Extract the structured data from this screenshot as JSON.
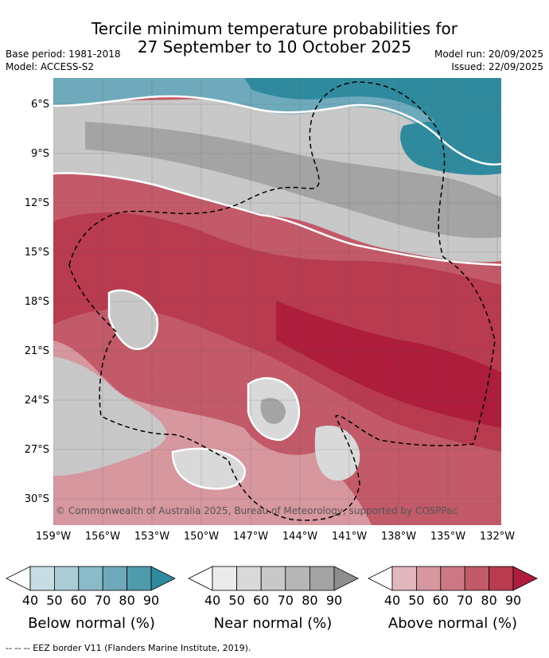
{
  "title": {
    "line1": "Tercile minimum temperature probabilities for",
    "line2": "27 September to 10 October 2025"
  },
  "meta": {
    "base_period": "Base period: 1981-2018",
    "model": "Model: ACCESS-S2",
    "model_run": "Model run: 20/09/2025",
    "issued": "Issued: 22/09/2025"
  },
  "map": {
    "lat_labels": [
      "6°S",
      "9°S",
      "12°S",
      "15°S",
      "18°S",
      "21°S",
      "24°S",
      "27°S",
      "30°S"
    ],
    "lon_labels": [
      "159°W",
      "156°W",
      "153°W",
      "150°W",
      "147°W",
      "144°W",
      "141°W",
      "138°W",
      "135°W",
      "132°W"
    ],
    "copyright": "© Commonwealth of Australia 2025, Bureau of Meteorology, supported by COSPPac"
  },
  "legend": {
    "ticks": [
      "40",
      "50",
      "60",
      "70",
      "80",
      "90"
    ],
    "below": {
      "title": "Below normal (%)",
      "colors": [
        "#c8dde3",
        "#a9ccd5",
        "#8bbac8",
        "#6eaabb",
        "#4f9aac",
        "#2f8a9e"
      ]
    },
    "near": {
      "title": "Near normal (%)",
      "colors": [
        "#ebebeb",
        "#d9d9d9",
        "#c8c8c8",
        "#b6b6b6",
        "#a4a4a4",
        "#8e8e8e"
      ]
    },
    "above": {
      "title": "Above normal (%)",
      "colors": [
        "#e2b6bd",
        "#d7979f",
        "#cc7884",
        "#c25a69",
        "#b83b50",
        "#ae1d3c"
      ]
    }
  },
  "footer": "--  --  -- EEZ border V11 (Flanders Marine Institute, 2019)."
}
